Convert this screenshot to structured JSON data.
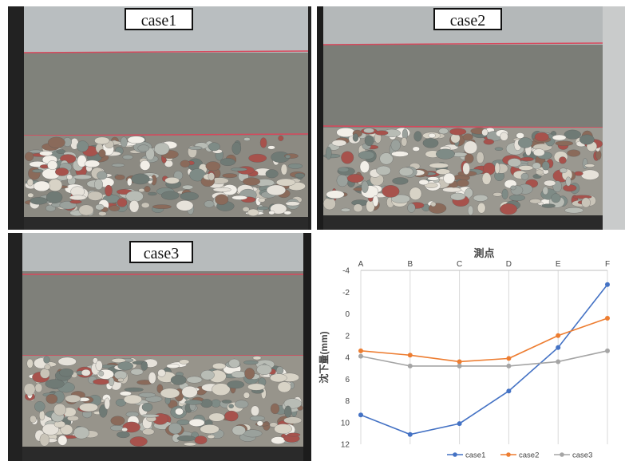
{
  "photos": [
    {
      "label": "case1"
    },
    {
      "label": "case2"
    },
    {
      "label": "case3"
    }
  ],
  "chart_data": {
    "type": "line",
    "title": "測点",
    "xlabel": "測点",
    "ylabel": "沈下量(mm)",
    "categories": [
      "A",
      "B",
      "C",
      "D",
      "E",
      "F"
    ],
    "y_ticks": [
      -4,
      -2,
      0,
      2,
      4,
      6,
      8,
      10,
      12
    ],
    "y_tick_labels": [
      "-4",
      "-2",
      "0",
      "2",
      "4",
      "6",
      "8",
      "10",
      "12"
    ],
    "ylim": [
      -4,
      12
    ],
    "y_inverted": true,
    "x_axis_position": "top",
    "grid": "vertical",
    "legend_position": "bottom",
    "series": [
      {
        "name": "case1",
        "color": "#4472C4",
        "values": [
          9.3,
          11.1,
          10.1,
          7.1,
          3.1,
          -2.7
        ]
      },
      {
        "name": "case2",
        "color": "#ED7D31",
        "values": [
          3.4,
          3.8,
          4.4,
          4.1,
          2.0,
          0.4
        ]
      },
      {
        "name": "case3",
        "color": "#A5A5A5",
        "values": [
          3.9,
          4.8,
          4.8,
          4.8,
          4.4,
          3.4
        ]
      }
    ]
  }
}
